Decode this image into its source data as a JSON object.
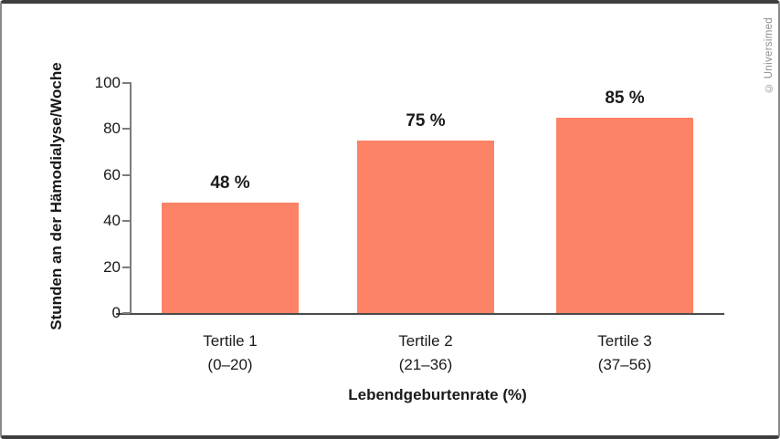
{
  "frame": {
    "credit": "© Universimed"
  },
  "chart_data": {
    "type": "bar",
    "title": "",
    "xlabel": "Lebendgeburtenrate (%)",
    "ylabel": "Stunden an der Hämodialyse/Woche",
    "ylim": [
      0,
      100
    ],
    "yticks": [
      0,
      20,
      40,
      60,
      80,
      100
    ],
    "grid": false,
    "legend": "none",
    "bar_color": "#fc8366",
    "categories": [
      "Tertile 1",
      "Tertile 2",
      "Tertile 3"
    ],
    "bars": [
      {
        "label_line1": "Tertile 1",
        "label_line2": "(0–20)",
        "value": 48,
        "value_label": "48 %"
      },
      {
        "label_line1": "Tertile 2",
        "label_line2": "(21–36)",
        "value": 75,
        "value_label": "75 %"
      },
      {
        "label_line1": "Tertile 3",
        "label_line2": "(37–56)",
        "value": 85,
        "value_label": "85 %"
      }
    ]
  }
}
